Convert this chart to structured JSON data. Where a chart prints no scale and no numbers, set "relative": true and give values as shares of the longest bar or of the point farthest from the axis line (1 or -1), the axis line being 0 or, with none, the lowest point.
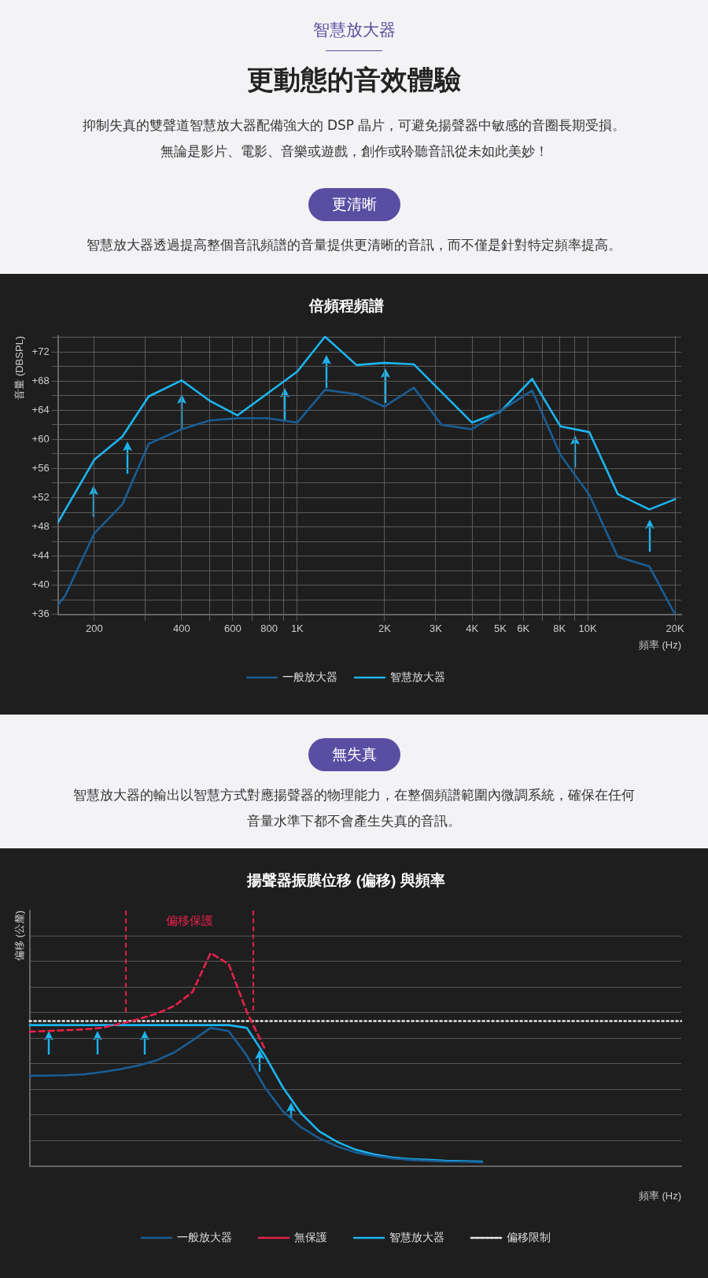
{
  "chart_data": [
    {
      "type": "line",
      "title": "倍頻程頻譜",
      "xlabel": "頻率 (Hz)",
      "ylabel": "音量 (DBSPL)",
      "annotations": [
        "智慧放大器",
        "更動態的音效體驗",
        "抑制失真的雙聲道智慧放大器配備強大的 DSP 晶片，可避免揚聲器中敏感的音圈長期受損。無論是影片、電影、音樂或遊戲，創作或聆聽音訊從未如此美妙！",
        "更清晰",
        "智慧放大器透過提高整個音訊頻譜的音量提供更清晰的音訊，而不僅是針對特定頻率提高。"
      ],
      "series": [
        {
          "name": "一般放大器",
          "color": "#1a5d94",
          "x": [
            150,
            159,
            200,
            250,
            308,
            400,
            500,
            623,
            791,
            1000,
            1246,
            1600,
            1995,
            2519,
            3140,
            4000,
            5000,
            6440,
            8050,
            10130,
            12700,
            16300,
            20000
          ],
          "values": [
            37.3,
            38.6,
            47.1,
            51.1,
            59.4,
            61.4,
            62.6,
            62.9,
            62.9,
            62.3,
            66.8,
            66.2,
            64.5,
            67.1,
            62.0,
            61.4,
            63.9,
            66.7,
            57.9,
            52.4,
            43.9,
            42.6,
            36.0
          ]
        },
        {
          "name": "智慧放大器",
          "color": "#1cb4f0",
          "x": [
            150,
            200,
            250,
            308,
            400,
            500,
            623,
            1000,
            1246,
            1600,
            1995,
            2519,
            4000,
            5000,
            6440,
            8050,
            10130,
            12700,
            16300,
            20000
          ],
          "values": [
            48.6,
            57.2,
            60.4,
            65.9,
            68.1,
            65.3,
            63.3,
            69.3,
            74.1,
            70.2,
            70.5,
            70.3,
            62.3,
            63.8,
            68.3,
            61.8,
            61.0,
            52.5,
            50.4,
            51.8
          ]
        }
      ],
      "log": "x",
      "grid": true,
      "legend": "bottom",
      "line_style": "solid",
      "xlim": [
        150,
        21000
      ],
      "xticks": [
        {
          "value": 200,
          "label": "200"
        },
        {
          "value": 300,
          "label": null
        },
        {
          "value": 400,
          "label": "400"
        },
        {
          "value": 500,
          "label": null
        },
        {
          "value": 600,
          "label": "600"
        },
        {
          "value": 700,
          "label": null
        },
        {
          "value": 800,
          "label": "800"
        },
        {
          "value": 900,
          "label": null
        },
        {
          "value": 1000,
          "label": "1K"
        },
        {
          "value": 2000,
          "label": "2K"
        },
        {
          "value": 3000,
          "label": "3K"
        },
        {
          "value": 4000,
          "label": "4K"
        },
        {
          "value": 5000,
          "label": "5K"
        },
        {
          "value": 6000,
          "label": "6K"
        },
        {
          "value": 7000,
          "label": null
        },
        {
          "value": 8000,
          "label": "8K"
        },
        {
          "value": 9000,
          "label": null
        },
        {
          "value": 10000,
          "label": "10K"
        },
        {
          "value": 20000,
          "label": "20K"
        }
      ],
      "ylim": [
        36,
        74.2
      ],
      "yticks": [
        {
          "value": 36,
          "label": "+36"
        },
        {
          "value": 38,
          "label": null
        },
        {
          "value": 40,
          "label": "+40"
        },
        {
          "value": 42,
          "label": null
        },
        {
          "value": 44,
          "label": "+44"
        },
        {
          "value": 46,
          "label": null
        },
        {
          "value": 48,
          "label": "+48"
        },
        {
          "value": 50,
          "label": null
        },
        {
          "value": 52,
          "label": "+52"
        },
        {
          "value": 54,
          "label": null
        },
        {
          "value": 56,
          "label": "+56"
        },
        {
          "value": 58,
          "label": null
        },
        {
          "value": 60,
          "label": "+60"
        },
        {
          "value": 62,
          "label": null
        },
        {
          "value": 64,
          "label": "+64"
        },
        {
          "value": 66,
          "label": null
        },
        {
          "value": 68,
          "label": "+68"
        },
        {
          "value": 70,
          "label": null
        },
        {
          "value": 72,
          "label": "+72"
        },
        {
          "value": 74,
          "label": null
        }
      ]
    },
    {
      "type": "line",
      "title": "揚聲器振膜位移 (偏移) 與頻率",
      "xlabel": "頻率 (Hz)",
      "ylabel": "偏移 (公釐)",
      "annotations": [
        "無失真",
        "智慧放大器的輸出以智慧方式對應揚聲器的物理能力，在整個頻譜範圍內微調系統，確保在任何音量水準下都不會產生失真的音訊。",
        "偏移保護"
      ],
      "relative": true,
      "grid": "y",
      "legend": "bottom",
      "categories": [
        null,
        null,
        null,
        null,
        null,
        null,
        null,
        null,
        null,
        null,
        null,
        null,
        null,
        null,
        null,
        null,
        null,
        null,
        null,
        null,
        null,
        null,
        null,
        null,
        null,
        null,
        null,
        null,
        null,
        null,
        null,
        null,
        null,
        null,
        null,
        null,
        null
      ],
      "series": [
        {
          "name": "一般放大器",
          "color": "#1a5d94",
          "values": [
            0.425,
            0.425,
            0.427,
            0.431,
            0.442,
            0.455,
            0.472,
            0.496,
            0.534,
            0.59,
            0.649,
            0.634,
            0.519,
            0.369,
            0.257,
            0.183,
            0.131,
            0.093,
            0.065,
            0.049,
            0.037,
            0.03,
            0.026,
            0.022,
            0.021,
            0.019,
            null,
            null,
            null,
            null,
            null,
            null,
            null,
            null,
            null,
            null,
            null
          ]
        },
        {
          "name": "無保護",
          "color": "#e8204c",
          "line_style": "dashed",
          "values": [
            0.631,
            0.634,
            0.638,
            0.642,
            0.649,
            0.668,
            0.69,
            0.715,
            0.752,
            0.817,
            1,
            0.948,
            0.724,
            0.55,
            null,
            null,
            null,
            null,
            null,
            null,
            null,
            null,
            null,
            null,
            null,
            null,
            null,
            null,
            null,
            null,
            null,
            null,
            null,
            null,
            null,
            null,
            null
          ]
        },
        {
          "name": "智慧放大器",
          "color": "#1cb4f0",
          "values": [
            0.662,
            0.662,
            0.662,
            0.662,
            0.662,
            0.662,
            0.662,
            0.662,
            0.662,
            0.662,
            0.662,
            0.662,
            0.649,
            0.519,
            0.369,
            0.248,
            0.164,
            0.114,
            0.078,
            0.056,
            0.041,
            0.034,
            0.03,
            0.026,
            0.024,
            0.022,
            null,
            null,
            null,
            null,
            null,
            null,
            null,
            null,
            null,
            null,
            null
          ]
        },
        {
          "name": "偏移限制",
          "color": "#e8e8e8",
          "line_style": "dotted",
          "values": [
            0.681,
            0.681,
            0.681,
            0.681,
            0.681,
            0.681,
            0.681,
            0.681,
            0.681,
            0.681,
            0.681,
            0.681,
            0.681,
            0.681,
            0.681,
            0.681,
            0.681,
            0.681,
            0.681,
            0.681,
            0.681,
            0.681,
            0.681,
            0.681,
            0.681,
            0.681,
            0.681,
            0.681,
            0.681,
            0.681,
            0.681,
            0.681,
            0.681,
            0.681,
            0.681,
            0.681,
            0.681
          ]
        }
      ]
    }
  ]
}
